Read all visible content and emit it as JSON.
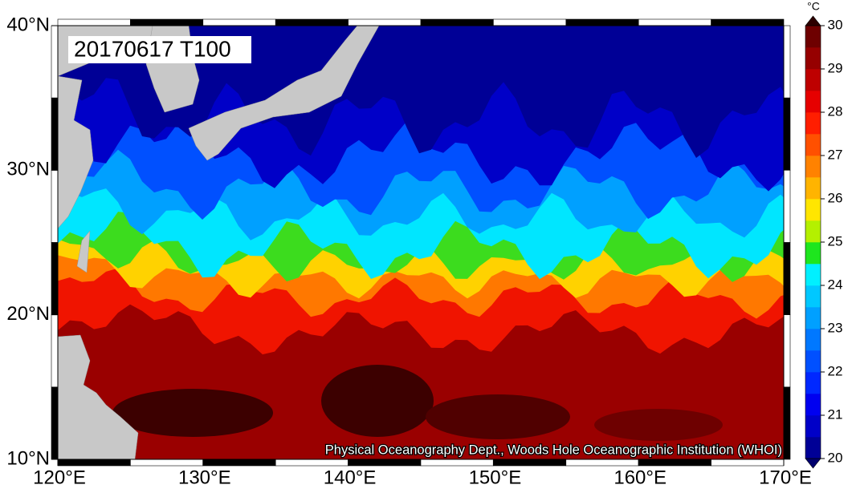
{
  "map": {
    "label": "20170617 T100",
    "credit": "Physical Oceanography Dept., Woods Hole Oceanographic Institution (WHOI)",
    "lon_ticks": [
      {
        "value": 120,
        "label": "120°E"
      },
      {
        "value": 130,
        "label": "130°E"
      },
      {
        "value": 140,
        "label": "140°E"
      },
      {
        "value": 150,
        "label": "150°E"
      },
      {
        "value": 160,
        "label": "160°E"
      },
      {
        "value": 170,
        "label": "170°E"
      }
    ],
    "lat_ticks": [
      {
        "value": 10,
        "label": "10°N"
      },
      {
        "value": 20,
        "label": "20°N"
      },
      {
        "value": 30,
        "label": "30°N"
      },
      {
        "value": 40,
        "label": "40°N"
      }
    ],
    "colorbar": {
      "unit": "°C",
      "ticks": [
        20,
        21,
        22,
        23,
        24,
        25,
        26,
        27,
        28,
        29,
        30
      ],
      "colors": [
        "#000096",
        "#0000c8",
        "#0000f0",
        "#0028ff",
        "#0050ff",
        "#0078ff",
        "#00a0ff",
        "#00c8ff",
        "#00f0ff",
        "#1ee61e",
        "#b4f000",
        "#ffe600",
        "#ffb400",
        "#ff8200",
        "#ff5000",
        "#ff1e00",
        "#e60000",
        "#be0000",
        "#960000",
        "#6e0000"
      ],
      "over_color": "#2d0000",
      "under_color": "#00006e"
    }
  }
}
